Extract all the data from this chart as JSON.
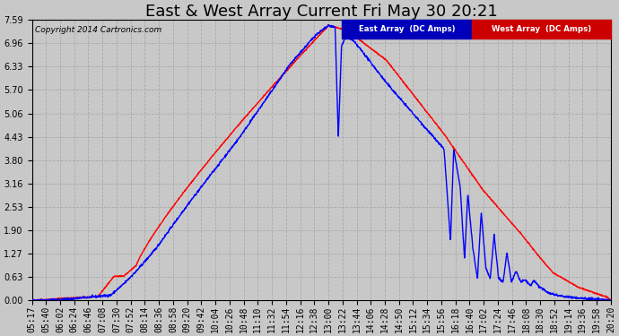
{
  "title": "East & West Array Current Fri May 30 20:21",
  "copyright": "Copyright 2014 Cartronics.com",
  "legend_east": "East Array  (DC Amps)",
  "legend_west": "West Array  (DC Amps)",
  "east_color": "#0000ff",
  "west_color": "#ff0000",
  "legend_east_bg": "#0000cc",
  "legend_west_bg": "#cc0000",
  "bg_color": "#c8c8c8",
  "plot_bg_color": "#c8c8c8",
  "ylim": [
    0.0,
    7.59
  ],
  "yticks": [
    0.0,
    0.63,
    1.27,
    1.9,
    2.53,
    3.16,
    3.8,
    4.43,
    5.06,
    5.7,
    6.33,
    6.96,
    7.59
  ],
  "xtick_labels": [
    "05:17",
    "05:40",
    "06:02",
    "06:24",
    "06:46",
    "07:08",
    "07:30",
    "07:52",
    "08:14",
    "08:36",
    "08:58",
    "09:20",
    "09:42",
    "10:04",
    "10:26",
    "10:48",
    "11:10",
    "11:32",
    "11:54",
    "12:16",
    "12:38",
    "13:00",
    "13:22",
    "13:44",
    "14:06",
    "14:28",
    "14:50",
    "15:12",
    "15:34",
    "15:56",
    "16:18",
    "16:40",
    "17:02",
    "17:24",
    "17:46",
    "18:08",
    "18:30",
    "18:52",
    "19:14",
    "19:36",
    "19:58",
    "20:20"
  ],
  "title_fontsize": 13,
  "tick_fontsize": 7,
  "grid_color": "#aaaaaa",
  "grid_linestyle": "--",
  "line_width": 1.0
}
